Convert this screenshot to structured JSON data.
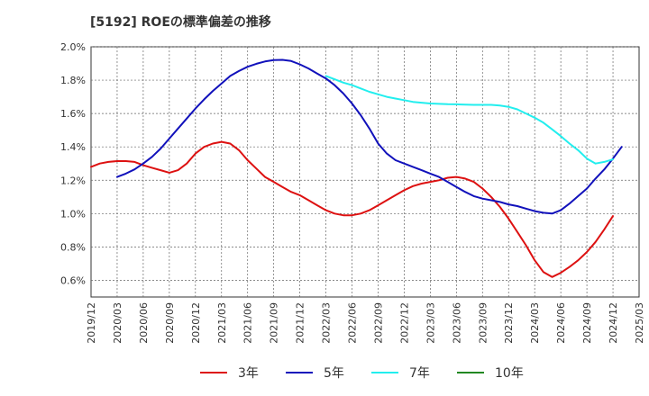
{
  "chart_data": {
    "type": "line",
    "title": "[5192]  ROEの標準偏差の推移",
    "xlabel": "",
    "ylabel": "",
    "ylim": [
      0.5,
      2.0
    ],
    "x_ticks": [
      "2019/12",
      "2020/03",
      "2020/06",
      "2020/09",
      "2020/12",
      "2021/03",
      "2021/06",
      "2021/09",
      "2021/12",
      "2022/03",
      "2022/06",
      "2022/09",
      "2022/12",
      "2023/03",
      "2023/06",
      "2023/09",
      "2023/12",
      "2024/03",
      "2024/06",
      "2024/09",
      "2024/12",
      "2025/03"
    ],
    "y_ticks": [
      {
        "value": 0.6,
        "label": "0.6%"
      },
      {
        "value": 0.8,
        "label": "0.8%"
      },
      {
        "value": 1.0,
        "label": "1.0%"
      },
      {
        "value": 1.2,
        "label": "1.2%"
      },
      {
        "value": 1.4,
        "label": "1.4%"
      },
      {
        "value": 1.6,
        "label": "1.6%"
      },
      {
        "value": 1.8,
        "label": "1.8%"
      },
      {
        "value": 2.0,
        "label": "2.0%"
      }
    ],
    "grid": true,
    "legend_position": "bottom",
    "series": [
      {
        "name": "3年",
        "color": "#dd1111",
        "points": [
          [
            "2019/12",
            1.28
          ],
          [
            "2020/01",
            1.3
          ],
          [
            "2020/02",
            1.31
          ],
          [
            "2020/03",
            1.315
          ],
          [
            "2020/04",
            1.315
          ],
          [
            "2020/05",
            1.31
          ],
          [
            "2020/06",
            1.29
          ],
          [
            "2020/07",
            1.275
          ],
          [
            "2020/08",
            1.26
          ],
          [
            "2020/09",
            1.245
          ],
          [
            "2020/10",
            1.26
          ],
          [
            "2020/11",
            1.3
          ],
          [
            "2020/12",
            1.36
          ],
          [
            "2021/01",
            1.4
          ],
          [
            "2021/02",
            1.42
          ],
          [
            "2021/03",
            1.43
          ],
          [
            "2021/04",
            1.42
          ],
          [
            "2021/05",
            1.38
          ],
          [
            "2021/06",
            1.32
          ],
          [
            "2021/07",
            1.27
          ],
          [
            "2021/08",
            1.22
          ],
          [
            "2021/09",
            1.19
          ],
          [
            "2021/10",
            1.16
          ],
          [
            "2021/11",
            1.13
          ],
          [
            "2021/12",
            1.11
          ],
          [
            "2022/01",
            1.08
          ],
          [
            "2022/02",
            1.05
          ],
          [
            "2022/03",
            1.02
          ],
          [
            "2022/04",
            1.0
          ],
          [
            "2022/05",
            0.99
          ],
          [
            "2022/06",
            0.99
          ],
          [
            "2022/07",
            1.0
          ],
          [
            "2022/08",
            1.02
          ],
          [
            "2022/09",
            1.05
          ],
          [
            "2022/10",
            1.08
          ],
          [
            "2022/11",
            1.11
          ],
          [
            "2022/12",
            1.14
          ],
          [
            "2023/01",
            1.165
          ],
          [
            "2023/02",
            1.18
          ],
          [
            "2023/03",
            1.19
          ],
          [
            "2023/04",
            1.2
          ],
          [
            "2023/05",
            1.215
          ],
          [
            "2023/06",
            1.22
          ],
          [
            "2023/07",
            1.21
          ],
          [
            "2023/08",
            1.19
          ],
          [
            "2023/09",
            1.15
          ],
          [
            "2023/10",
            1.1
          ],
          [
            "2023/11",
            1.04
          ],
          [
            "2023/12",
            0.97
          ],
          [
            "2024/01",
            0.89
          ],
          [
            "2024/02",
            0.81
          ],
          [
            "2024/03",
            0.72
          ],
          [
            "2024/04",
            0.65
          ],
          [
            "2024/05",
            0.62
          ],
          [
            "2024/06",
            0.645
          ],
          [
            "2024/07",
            0.68
          ],
          [
            "2024/08",
            0.72
          ],
          [
            "2024/09",
            0.77
          ],
          [
            "2024/10",
            0.83
          ],
          [
            "2024/11",
            0.905
          ],
          [
            "2024/12",
            0.985
          ]
        ]
      },
      {
        "name": "5年",
        "color": "#1111bb",
        "points": [
          [
            "2020/03",
            1.22
          ],
          [
            "2020/04",
            1.24
          ],
          [
            "2020/05",
            1.265
          ],
          [
            "2020/06",
            1.3
          ],
          [
            "2020/07",
            1.34
          ],
          [
            "2020/08",
            1.39
          ],
          [
            "2020/09",
            1.45
          ],
          [
            "2020/10",
            1.51
          ],
          [
            "2020/11",
            1.57
          ],
          [
            "2020/12",
            1.63
          ],
          [
            "2021/01",
            1.685
          ],
          [
            "2021/02",
            1.735
          ],
          [
            "2021/03",
            1.78
          ],
          [
            "2021/04",
            1.825
          ],
          [
            "2021/05",
            1.855
          ],
          [
            "2021/06",
            1.88
          ],
          [
            "2021/07",
            1.898
          ],
          [
            "2021/08",
            1.912
          ],
          [
            "2021/09",
            1.92
          ],
          [
            "2021/10",
            1.922
          ],
          [
            "2021/11",
            1.915
          ],
          [
            "2021/12",
            1.895
          ],
          [
            "2022/01",
            1.87
          ],
          [
            "2022/02",
            1.84
          ],
          [
            "2022/03",
            1.81
          ],
          [
            "2022/04",
            1.77
          ],
          [
            "2022/05",
            1.72
          ],
          [
            "2022/06",
            1.66
          ],
          [
            "2022/07",
            1.59
          ],
          [
            "2022/08",
            1.51
          ],
          [
            "2022/09",
            1.42
          ],
          [
            "2022/10",
            1.36
          ],
          [
            "2022/11",
            1.32
          ],
          [
            "2022/12",
            1.3
          ],
          [
            "2023/01",
            1.28
          ],
          [
            "2023/02",
            1.26
          ],
          [
            "2023/03",
            1.24
          ],
          [
            "2023/04",
            1.22
          ],
          [
            "2023/05",
            1.19
          ],
          [
            "2023/06",
            1.16
          ],
          [
            "2023/07",
            1.13
          ],
          [
            "2023/08",
            1.105
          ],
          [
            "2023/09",
            1.09
          ],
          [
            "2023/10",
            1.08
          ],
          [
            "2023/11",
            1.07
          ],
          [
            "2023/12",
            1.055
          ],
          [
            "2024/01",
            1.045
          ],
          [
            "2024/02",
            1.03
          ],
          [
            "2024/03",
            1.015
          ],
          [
            "2024/04",
            1.005
          ],
          [
            "2024/05",
            1.0
          ],
          [
            "2024/06",
            1.02
          ],
          [
            "2024/07",
            1.06
          ],
          [
            "2024/08",
            1.105
          ],
          [
            "2024/09",
            1.15
          ],
          [
            "2024/10",
            1.21
          ],
          [
            "2024/11",
            1.265
          ],
          [
            "2024/12",
            1.33
          ],
          [
            "2025/01",
            1.4
          ]
        ]
      },
      {
        "name": "7年",
        "color": "#22eeee",
        "points": [
          [
            "2022/03",
            1.825
          ],
          [
            "2022/04",
            1.805
          ],
          [
            "2022/05",
            1.785
          ],
          [
            "2022/06",
            1.77
          ],
          [
            "2022/07",
            1.75
          ],
          [
            "2022/08",
            1.73
          ],
          [
            "2022/09",
            1.715
          ],
          [
            "2022/10",
            1.7
          ],
          [
            "2022/11",
            1.69
          ],
          [
            "2022/12",
            1.68
          ],
          [
            "2023/01",
            1.67
          ],
          [
            "2023/02",
            1.665
          ],
          [
            "2023/03",
            1.66
          ],
          [
            "2023/04",
            1.658
          ],
          [
            "2023/05",
            1.656
          ],
          [
            "2023/06",
            1.655
          ],
          [
            "2023/07",
            1.653
          ],
          [
            "2023/08",
            1.652
          ],
          [
            "2023/09",
            1.652
          ],
          [
            "2023/10",
            1.652
          ],
          [
            "2023/11",
            1.648
          ],
          [
            "2023/12",
            1.64
          ],
          [
            "2024/01",
            1.625
          ],
          [
            "2024/02",
            1.6
          ],
          [
            "2024/03",
            1.575
          ],
          [
            "2024/04",
            1.545
          ],
          [
            "2024/05",
            1.505
          ],
          [
            "2024/06",
            1.465
          ],
          [
            "2024/07",
            1.42
          ],
          [
            "2024/08",
            1.38
          ],
          [
            "2024/09",
            1.33
          ],
          [
            "2024/10",
            1.3
          ],
          [
            "2024/11",
            1.31
          ],
          [
            "2024/12",
            1.325
          ]
        ]
      },
      {
        "name": "10年",
        "color": "#228822",
        "points": []
      }
    ]
  }
}
